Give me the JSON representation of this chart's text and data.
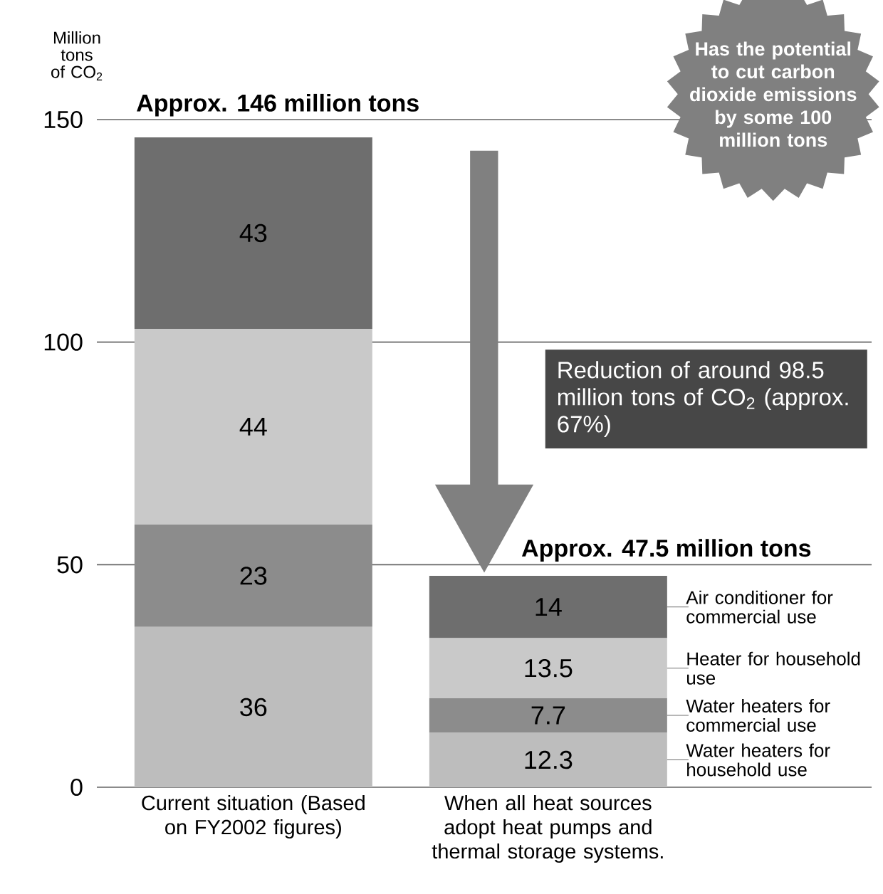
{
  "chart_data": {
    "type": "bar",
    "stacked": true,
    "ylabel": "Million tons of CO$_{2}$",
    "categories": [
      "Current situation (Based on FY2002 figures)",
      "When all heat sources adopt heat pumps and thermal storage systems."
    ],
    "series": [
      {
        "name": "Water heaters for household use",
        "color": "#bdbdbd",
        "values": [
          36,
          12.3
        ]
      },
      {
        "name": "Water heaters for commercial use",
        "color": "#8c8c8c",
        "values": [
          23,
          7.7
        ]
      },
      {
        "name": "Heater for household use",
        "color": "#c9c9c9",
        "values": [
          44,
          13.5
        ]
      },
      {
        "name": "Air conditioner for commercial use",
        "color": "#6e6e6e",
        "values": [
          43,
          14
        ]
      }
    ],
    "totals": [
      "Approx. 146 million tons",
      "Approx. 47.5 million tons"
    ],
    "ylim": [
      0,
      150
    ],
    "yticks": [
      0,
      50,
      100,
      150
    ],
    "grid": "y",
    "data_labels": true,
    "annotations": [
      "Has the potential to cut carbon dioxide emissions by some 100 million tons",
      "Reduction of around 98.5 million tons of CO$_{2}$ (approx. 67%)"
    ]
  }
}
